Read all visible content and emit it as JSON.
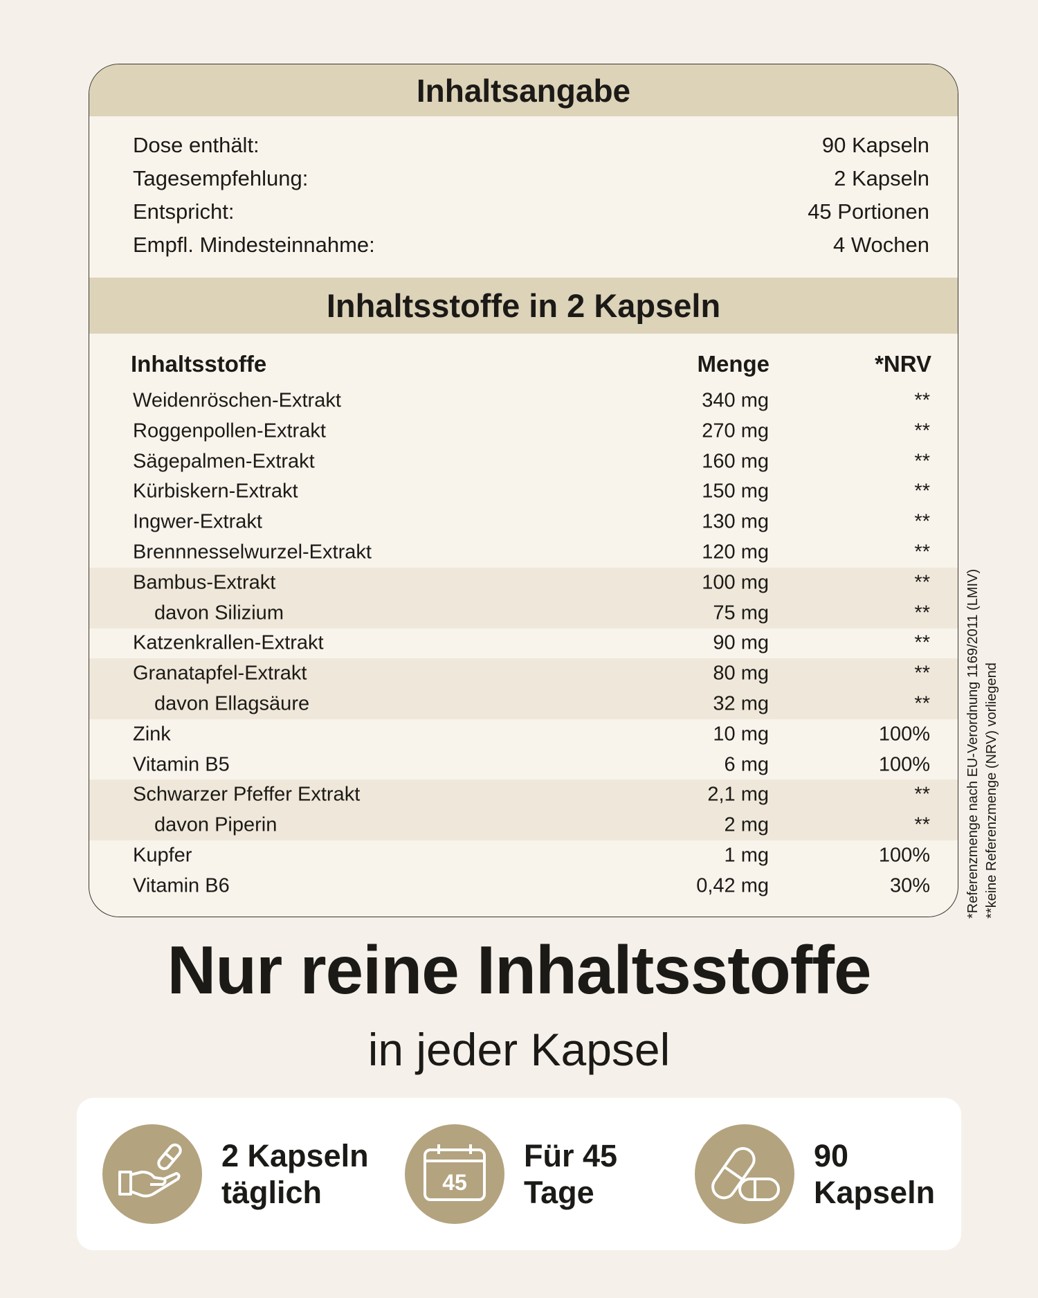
{
  "contents": {
    "title": "Inhaltsangabe",
    "rows": [
      {
        "label": "Dose enthält:",
        "value": "90 Kapseln"
      },
      {
        "label": "Tagesempfehlung:",
        "value": "2 Kapseln"
      },
      {
        "label": "Entspricht:",
        "value": "45 Portionen"
      },
      {
        "label": "Empfl. Mindesteinnahme:",
        "value": "4 Wochen"
      }
    ]
  },
  "ingredients": {
    "title": "Inhaltsstoffe in 2 Kapseln",
    "headers": {
      "name": "Inhaltsstoffe",
      "amount": "Menge",
      "nrv": "*NRV"
    },
    "rows": [
      {
        "name": "Weidenröschen-Extrakt",
        "amount": "340 mg",
        "nrv": "**"
      },
      {
        "name": "Roggenpollen-Extrakt",
        "amount": "270 mg",
        "nrv": "**"
      },
      {
        "name": "Sägepalmen-Extrakt",
        "amount": "160 mg",
        "nrv": "**"
      },
      {
        "name": "Kürbiskern-Extrakt",
        "amount": "150 mg",
        "nrv": "**"
      },
      {
        "name": "Ingwer-Extrakt",
        "amount": "130 mg",
        "nrv": "**"
      },
      {
        "name": "Brennnesselwurzel-Extrakt",
        "amount": "120 mg",
        "nrv": "**"
      },
      {
        "name": "Bambus-Extrakt",
        "amount": "100 mg",
        "nrv": "**"
      },
      {
        "name": "davon Silizium",
        "amount": "75 mg",
        "nrv": "**"
      },
      {
        "name": "Katzenkrallen-Extrakt",
        "amount": "90 mg",
        "nrv": "**"
      },
      {
        "name": "Granatapfel-Extrakt",
        "amount": "80 mg",
        "nrv": "**"
      },
      {
        "name": "davon Ellagsäure",
        "amount": "32 mg",
        "nrv": "**"
      },
      {
        "name": "Zink",
        "amount": "10 mg",
        "nrv": "100%"
      },
      {
        "name": "Vitamin B5",
        "amount": "6 mg",
        "nrv": "100%"
      },
      {
        "name": "Schwarzer Pfeffer Extrakt",
        "amount": "2,1 mg",
        "nrv": "**"
      },
      {
        "name": "davon Piperin",
        "amount": "2 mg",
        "nrv": "**"
      },
      {
        "name": "Kupfer",
        "amount": "1 mg",
        "nrv": "100%"
      },
      {
        "name": "Vitamin B6",
        "amount": "0,42 mg",
        "nrv": "30%"
      }
    ]
  },
  "footnotes": [
    "*Referenzmenge nach EU-Verordnung 1169/2011 (LMIV)",
    "**keine Referenzmenge (NRV) vorliegend"
  ],
  "headline": "Nur reine Inhaltsstoffe",
  "subline": "in jeder Kapsel",
  "features": [
    {
      "icon": "hand-capsule-icon",
      "line1": "2 Kapseln",
      "line2": "täglich"
    },
    {
      "icon": "calendar-icon",
      "line1": "Für 45",
      "line2": "Tage",
      "calendar_number": "45"
    },
    {
      "icon": "capsules-icon",
      "line1": "90",
      "line2": "Kapseln"
    }
  ],
  "colors": {
    "band": "#ddd3b9",
    "icon_circle": "#b3a37f",
    "shaded_row": "#efe8da",
    "background": "#f5f1ea"
  }
}
